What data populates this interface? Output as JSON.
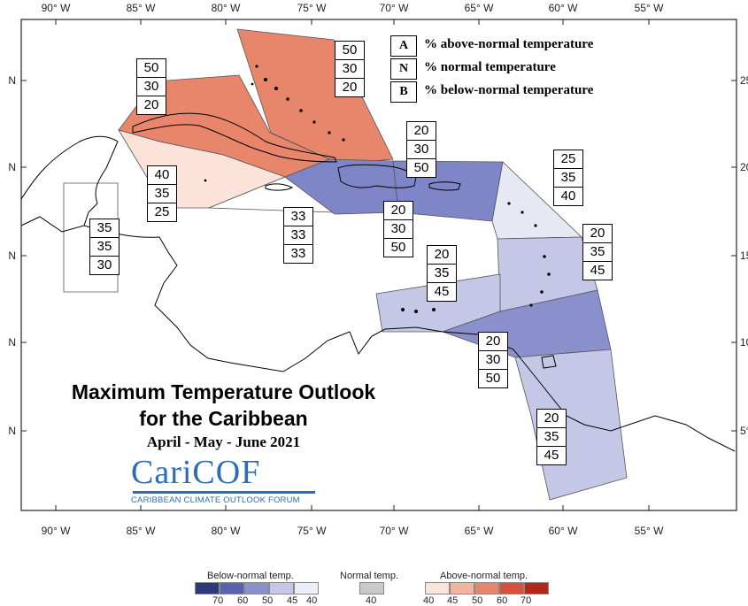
{
  "map": {
    "lon_ticks": [
      "90° W",
      "85° W",
      "80° W",
      "75° W",
      "70° W",
      "65° W",
      "60° W",
      "55° W"
    ],
    "lat_ticks_left": [
      "N",
      "N",
      "N",
      "N",
      "N"
    ],
    "lat_ticks_right": [
      "25°",
      "20°",
      "15°",
      "10°",
      "5°"
    ]
  },
  "regions": [
    {
      "id": "bahamas",
      "category": "above",
      "color": "#e8866c",
      "A": "50",
      "N": "30",
      "B": "20"
    },
    {
      "id": "cuba",
      "category": "above",
      "color": "#e8866c",
      "A": "50",
      "N": "30",
      "B": "20"
    },
    {
      "id": "yucatan-channel",
      "category": "above",
      "color": "#fce3da",
      "A": "40",
      "N": "35",
      "B": "25"
    },
    {
      "id": "jamaica",
      "category": "normal",
      "color": "#ffffff",
      "A": "33",
      "N": "33",
      "B": "33"
    },
    {
      "id": "belize",
      "category": "normal",
      "color": "#ffffff",
      "A": "35",
      "N": "35",
      "B": "30"
    },
    {
      "id": "hispaniola",
      "category": "below",
      "color": "#7f86c7",
      "A": "20",
      "N": "30",
      "B": "50"
    },
    {
      "id": "puerto-rico",
      "category": "below",
      "color": "#7f86c7",
      "A": "20",
      "N": "30",
      "B": "50"
    },
    {
      "id": "northern-leewards",
      "category": "below",
      "color": "#e6e8f4",
      "A": "25",
      "N": "35",
      "B": "40"
    },
    {
      "id": "lesser-antilles",
      "category": "below",
      "color": "#c4c8e6",
      "A": "20",
      "N": "35",
      "B": "45"
    },
    {
      "id": "abc-islands",
      "category": "below",
      "color": "#c4c8e6",
      "A": "20",
      "N": "35",
      "B": "45"
    },
    {
      "id": "trinidad",
      "category": "below",
      "color": "#8a90cc",
      "A": "20",
      "N": "30",
      "B": "50"
    },
    {
      "id": "guianas",
      "category": "below",
      "color": "#c4c8e6",
      "A": "20",
      "N": "35",
      "B": "45"
    }
  ],
  "key": {
    "A": {
      "letter": "A",
      "text": "% above-normal temperature"
    },
    "N": {
      "letter": "N",
      "text": "% normal temperature"
    },
    "B": {
      "letter": "B",
      "text": "% below-normal temperature"
    }
  },
  "title": {
    "line1": "Maximum Temperature Outlook",
    "line2": "for the Caribbean",
    "period": "April - May - June 2021"
  },
  "logo": {
    "name": "CariCOF",
    "tagline": "CARIBBEAN CLIMATE OUTLOOK FORUM"
  },
  "colorbar": {
    "below": {
      "title": "Below-normal temp.",
      "ticks": [
        "70",
        "60",
        "50",
        "45",
        "40"
      ],
      "colors": [
        "#2b3a80",
        "#5862b0",
        "#8a90cc",
        "#c4c8e6",
        "#eceef8"
      ]
    },
    "normal": {
      "title": "Normal temp.",
      "ticks": [
        "40"
      ],
      "colors": [
        "#c9c9c9"
      ]
    },
    "above": {
      "title": "Above-normal temp.",
      "ticks": [
        "40",
        "45",
        "50",
        "60",
        "70"
      ],
      "colors": [
        "#fbe4dc",
        "#f5b39f",
        "#e8866c",
        "#d4523a",
        "#b02a1a"
      ]
    }
  }
}
